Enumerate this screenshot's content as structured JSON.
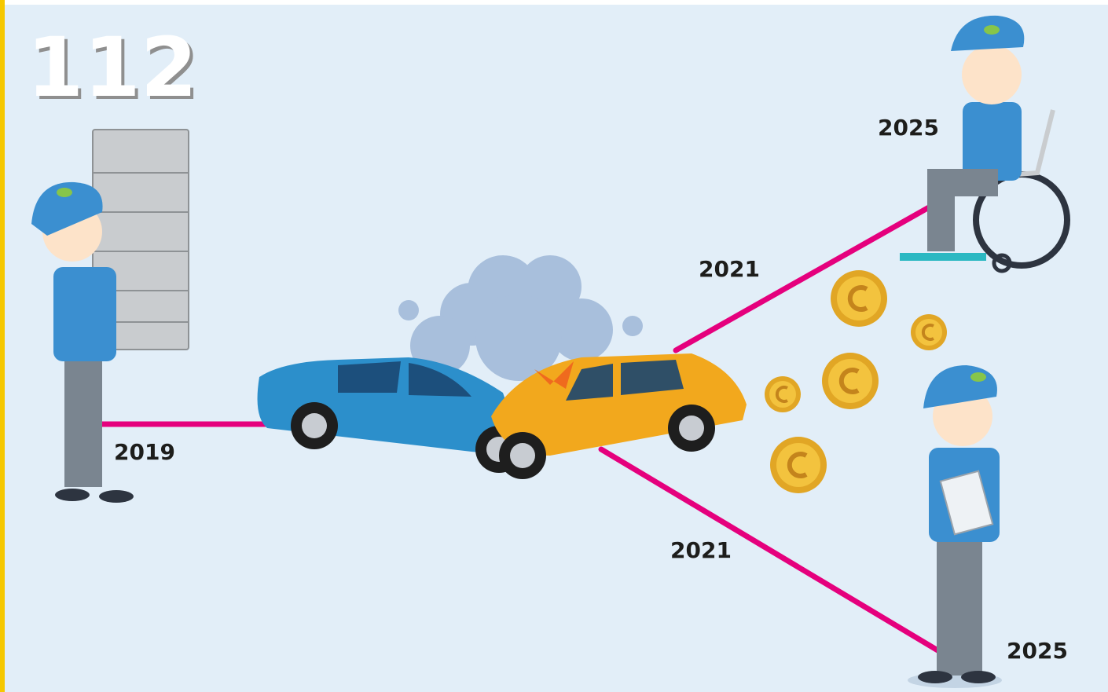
{
  "page_number": "112",
  "start": {
    "year": "2019"
  },
  "branches": [
    {
      "middle": "2021",
      "end": "2025"
    },
    {
      "middle": "2021",
      "end": "2025"
    }
  ]
}
